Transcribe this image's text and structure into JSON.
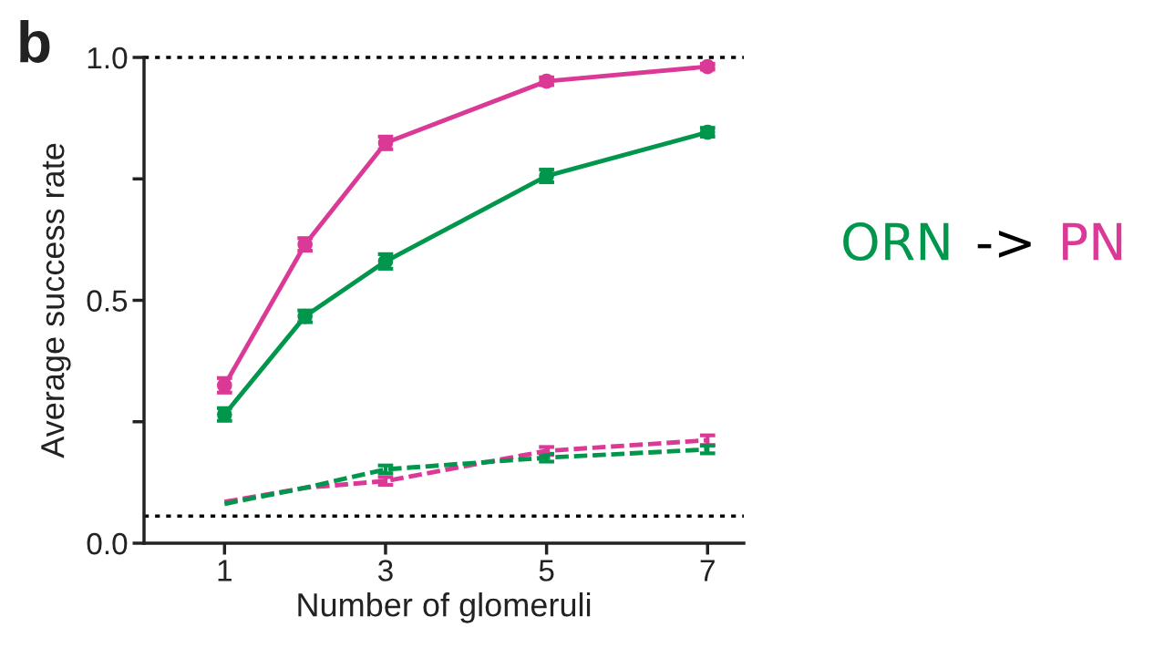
{
  "chart_data": {
    "type": "line",
    "xlabel": "Number of glomeruli",
    "ylabel": "Average success rate",
    "x": [
      1,
      2,
      3,
      5,
      7
    ],
    "series": [
      {
        "name": "PN",
        "color": "#db3996",
        "values": [
          0.325,
          0.615,
          0.824,
          0.951,
          0.981
        ],
        "errors": [
          0.015,
          0.013,
          0.013,
          0.008,
          0.006
        ],
        "marker": "circle",
        "line_style": "solid"
      },
      {
        "name": "ORN",
        "color": "#00964b",
        "values": [
          0.265,
          0.467,
          0.58,
          0.756,
          0.846
        ],
        "errors": [
          0.013,
          0.012,
          0.015,
          0.013,
          0.009
        ],
        "marker": "circle",
        "line_style": "solid"
      },
      {
        "color": "#db3996",
        "values": [
          0.085,
          0.114,
          0.128,
          0.19,
          0.212
        ],
        "errors": [
          null,
          null,
          0.008,
          0.008,
          0.01
        ],
        "marker": "none",
        "line_style": "dashed"
      },
      {
        "color": "#00964b",
        "values": [
          0.081,
          0.114,
          0.152,
          0.176,
          0.193
        ],
        "errors": [
          null,
          null,
          0.008,
          0.008,
          0.008
        ],
        "marker": "none",
        "line_style": "dashed"
      }
    ],
    "xlim": [
      0,
      7.45
    ],
    "xticks": [
      1,
      3,
      5,
      7
    ],
    "ylim": [
      0,
      1.0
    ],
    "yticks": [
      {
        "value": 0,
        "label": "0.0"
      },
      {
        "value": 0.25,
        "label": null
      },
      0.5,
      {
        "value": 0.75,
        "label": null
      },
      {
        "value": 1,
        "label": "1.0"
      }
    ],
    "ref_lines": [
      {
        "axis": "y",
        "value": 1.0,
        "color": "#000000",
        "line_style": "dotted"
      },
      {
        "axis": "y",
        "value": 0.056,
        "color": "#000000",
        "line_style": "dotted"
      }
    ],
    "annotations": [
      "b",
      "->"
    ],
    "grid": false,
    "legend": "right"
  }
}
